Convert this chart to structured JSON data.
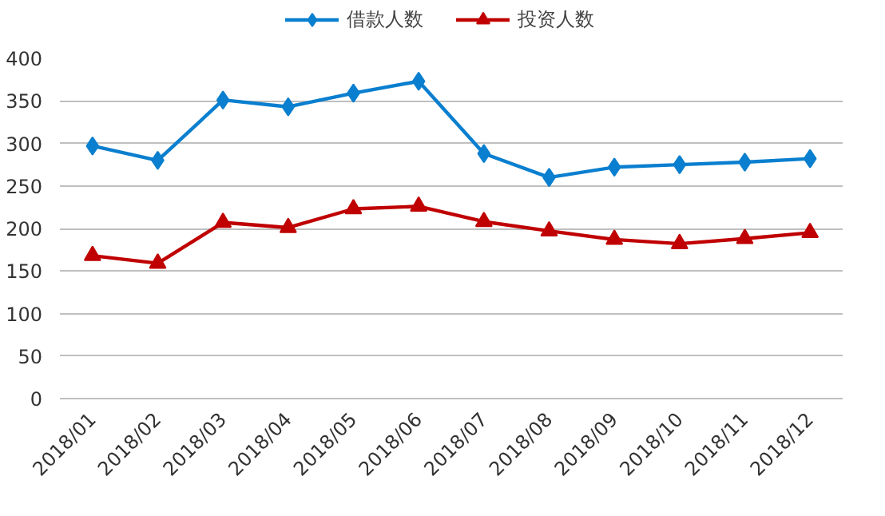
{
  "chart_data": {
    "type": "line",
    "categories": [
      "2018/01",
      "2018/02",
      "2018/03",
      "2018/04",
      "2018/05",
      "2018/06",
      "2018/07",
      "2018/08",
      "2018/09",
      "2018/10",
      "2018/11",
      "2018/12"
    ],
    "series": [
      {
        "name": "借款人数",
        "color": "#0a7fcf",
        "marker": "diamond",
        "values": [
          297,
          280,
          351,
          343,
          359,
          373,
          288,
          260,
          272,
          275,
          278,
          282
        ]
      },
      {
        "name": "投资人数",
        "color": "#c00000",
        "marker": "triangle",
        "values": [
          168,
          159,
          207,
          201,
          223,
          226,
          208,
          197,
          187,
          182,
          188,
          195
        ]
      }
    ],
    "ylim": [
      0,
      400
    ],
    "yticks": [
      0,
      50,
      100,
      150,
      200,
      250,
      300,
      350,
      400
    ],
    "grid": "y",
    "legend": "top",
    "line_style": "solid"
  }
}
